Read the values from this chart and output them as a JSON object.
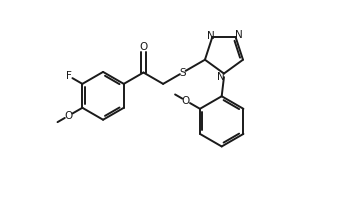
{
  "bg_color": "#ffffff",
  "line_color": "#1a1a1a",
  "line_width": 1.4,
  "font_size": 7.5,
  "figsize": [
    3.52,
    2.06
  ],
  "dpi": 100,
  "xlim": [
    0.0,
    1.0
  ],
  "ylim": [
    0.0,
    0.85
  ]
}
